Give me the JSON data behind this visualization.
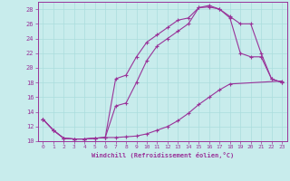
{
  "xlabel": "Windchill (Refroidissement éolien,°C)",
  "ylabel": "",
  "bg_color": "#c8ecec",
  "line_color": "#993399",
  "grid_color": "#aadddd",
  "xlim": [
    -0.5,
    23.5
  ],
  "ylim": [
    10,
    29
  ],
  "xticks": [
    0,
    1,
    2,
    3,
    4,
    5,
    6,
    7,
    8,
    9,
    10,
    11,
    12,
    13,
    14,
    15,
    16,
    17,
    18,
    19,
    20,
    21,
    22,
    23
  ],
  "yticks": [
    10,
    12,
    14,
    16,
    18,
    20,
    22,
    24,
    26,
    28
  ],
  "curve1_x": [
    0,
    1,
    2,
    3,
    4,
    5,
    6,
    7,
    8,
    9,
    10,
    11,
    12,
    13,
    14,
    15,
    16,
    17,
    18,
    23
  ],
  "curve1_y": [
    13,
    11.5,
    10.4,
    10.3,
    10.3,
    10.4,
    10.5,
    10.5,
    10.6,
    10.7,
    11.0,
    11.5,
    12.0,
    12.8,
    13.8,
    15.0,
    16.0,
    17.0,
    17.8,
    18.2
  ],
  "curve2_x": [
    0,
    1,
    2,
    3,
    4,
    5,
    6,
    7,
    8,
    9,
    10,
    11,
    12,
    13,
    14,
    15,
    16,
    17,
    18,
    19,
    20,
    21,
    22,
    23
  ],
  "curve2_y": [
    13,
    11.5,
    10.4,
    10.3,
    10.3,
    10.4,
    10.5,
    18.5,
    19.0,
    21.5,
    23.5,
    24.5,
    25.5,
    26.5,
    26.8,
    28.2,
    28.3,
    28.0,
    26.8,
    22.0,
    21.5,
    21.5,
    18.5,
    18.0
  ],
  "curve3_x": [
    0,
    1,
    2,
    3,
    4,
    5,
    6,
    7,
    8,
    9,
    10,
    11,
    12,
    13,
    14,
    15,
    16,
    17,
    18,
    19,
    20,
    21,
    22,
    23
  ],
  "curve3_y": [
    13,
    11.5,
    10.4,
    10.3,
    10.3,
    10.4,
    10.5,
    14.8,
    15.2,
    18.0,
    21.0,
    23.0,
    24.0,
    25.0,
    26.0,
    28.2,
    28.5,
    28.0,
    27.0,
    26.0,
    26.0,
    22.0,
    18.5,
    18.0
  ]
}
